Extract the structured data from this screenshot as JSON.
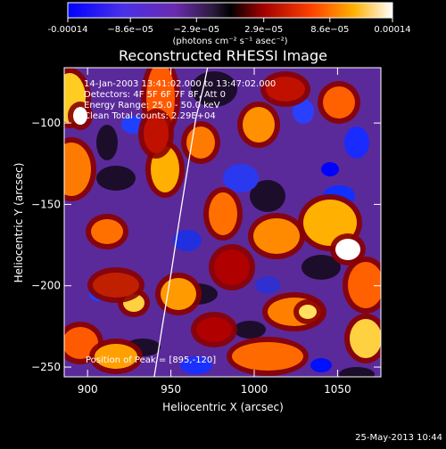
{
  "colorbar": {
    "ticks": [
      -0.00014,
      -8.6e-05,
      -2.9e-05,
      2.9e-05,
      8.6e-05,
      0.00014
    ],
    "tick_labels": [
      "-0.00014",
      "−8.6e−05",
      "−2.9e−05",
      "2.9e−05",
      "8.6e−05",
      "0.00014"
    ],
    "unit_label": "(photons cm⁻² s⁻¹ asec⁻²)",
    "range": [
      -0.00014,
      0.00014
    ],
    "colors": [
      "#0000ff",
      "#6a2bd6",
      "#5a2e8a",
      "#000000",
      "#b00000",
      "#ff6a00",
      "#ffffff"
    ]
  },
  "chart_data": {
    "type": "heatmap",
    "title": "Reconstructed RHESSI Image",
    "xlabel": "Heliocentric X (arcsec)",
    "ylabel": "Heliocentric Y (arcsec)",
    "xlim": [
      886,
      1076
    ],
    "ylim": [
      -256,
      -66
    ],
    "x_ticks": [
      900,
      950,
      1000,
      1050
    ],
    "x_tick_labels": [
      "900",
      "950",
      "1000",
      "1050"
    ],
    "y_ticks": [
      -250,
      -200,
      -150,
      -100
    ],
    "y_tick_labels": [
      "−250",
      "−200",
      "−150",
      "−100"
    ],
    "limb_curve": {
      "x": [
        940,
        945,
        950,
        955,
        960,
        965,
        970,
        972
      ],
      "y": [
        -256,
        -224,
        -193,
        -160,
        -128,
        -97,
        -76,
        -66
      ]
    },
    "annotations": [
      "14-Jan-2003 13:41:02.000 to 13:47:02.000",
      "Detectors: 4F 5F 6F 7F 8F, Att 0",
      "Energy Range: 25.0 - 50.0 keV",
      "Clean     Total counts: 2.29E+04"
    ],
    "peak_label": "Position of Peak = [895,-120]",
    "peak_position": [
      895,
      -120
    ]
  },
  "timestamp": "25-May-2013 10:44"
}
